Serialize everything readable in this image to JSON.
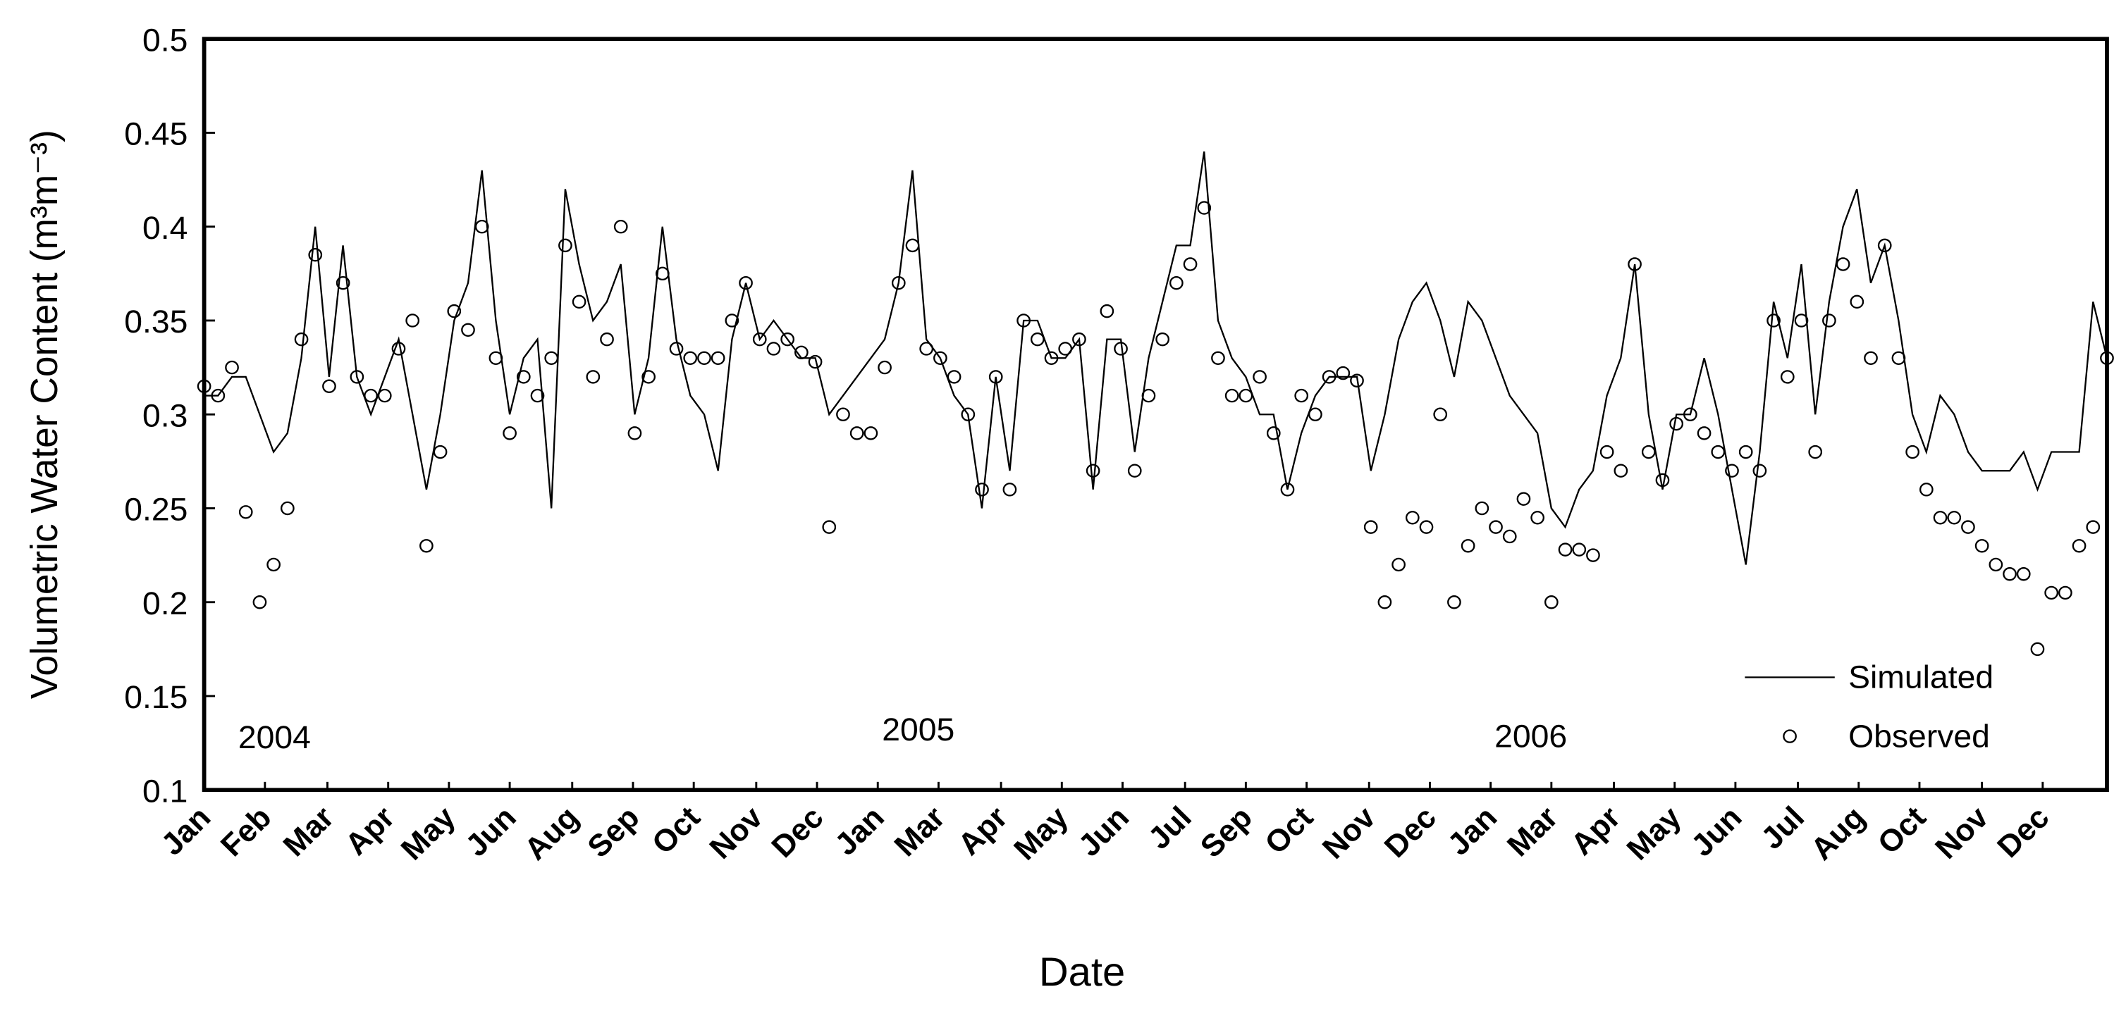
{
  "chart_data": {
    "type": "line",
    "x_label": "Date",
    "y_label": "Volumetric Water Content (m³m⁻³)",
    "annotations": [
      "2004",
      "2005",
      "2006"
    ],
    "xlim": [
      0,
      1096
    ],
    "xticks": [
      {
        "value": 0,
        "label": "Jan"
      },
      {
        "value": 35,
        "label": "Feb"
      },
      {
        "value": 71,
        "label": "Mar"
      },
      {
        "value": 106,
        "label": "Apr"
      },
      {
        "value": 141,
        "label": "May"
      },
      {
        "value": 176,
        "label": "Jun"
      },
      {
        "value": 212,
        "label": "Aug"
      },
      {
        "value": 247,
        "label": "Sep"
      },
      {
        "value": 282,
        "label": "Oct"
      },
      {
        "value": 318,
        "label": "Nov"
      },
      {
        "value": 353,
        "label": "Dec"
      },
      {
        "value": 388,
        "label": "Jan"
      },
      {
        "value": 423,
        "label": "Mar"
      },
      {
        "value": 459,
        "label": "Apr"
      },
      {
        "value": 494,
        "label": "May"
      },
      {
        "value": 529,
        "label": "Jun"
      },
      {
        "value": 565,
        "label": "Jul"
      },
      {
        "value": 600,
        "label": "Sep"
      },
      {
        "value": 635,
        "label": "Oct"
      },
      {
        "value": 671,
        "label": "Nov"
      },
      {
        "value": 706,
        "label": "Dec"
      },
      {
        "value": 741,
        "label": "Jan"
      },
      {
        "value": 776,
        "label": "Mar"
      },
      {
        "value": 812,
        "label": "Apr"
      },
      {
        "value": 847,
        "label": "May"
      },
      {
        "value": 882,
        "label": "Jun"
      },
      {
        "value": 918,
        "label": "Jul"
      },
      {
        "value": 953,
        "label": "Aug"
      },
      {
        "value": 988,
        "label": "Oct"
      },
      {
        "value": 1024,
        "label": "Nov"
      },
      {
        "value": 1059,
        "label": "Dec"
      }
    ],
    "ylim": [
      0.1,
      0.5
    ],
    "yticks": [
      0.1,
      0.15,
      0.2,
      0.25,
      0.3,
      0.35,
      0.4,
      0.45,
      0.5
    ],
    "grid": false,
    "legend": "lower right",
    "x": [
      0,
      8,
      16,
      24,
      32,
      40,
      48,
      56,
      64,
      72,
      80,
      88,
      96,
      104,
      112,
      120,
      128,
      136,
      144,
      152,
      160,
      168,
      176,
      184,
      192,
      200,
      208,
      216,
      224,
      232,
      240,
      248,
      256,
      264,
      272,
      280,
      288,
      296,
      304,
      312,
      320,
      328,
      336,
      344,
      352,
      360,
      368,
      376,
      384,
      392,
      400,
      408,
      416,
      424,
      432,
      440,
      448,
      456,
      464,
      472,
      480,
      488,
      496,
      504,
      512,
      520,
      528,
      536,
      544,
      552,
      560,
      568,
      576,
      584,
      592,
      600,
      608,
      616,
      624,
      632,
      640,
      648,
      656,
      664,
      672,
      680,
      688,
      696,
      704,
      712,
      720,
      728,
      736,
      744,
      752,
      760,
      768,
      776,
      784,
      792,
      800,
      808,
      816,
      824,
      832,
      840,
      848,
      856,
      864,
      872,
      880,
      888,
      896,
      904,
      912,
      920,
      928,
      936,
      944,
      952,
      960,
      968,
      976,
      984,
      992,
      1000,
      1008,
      1016,
      1024,
      1032,
      1040,
      1048,
      1056,
      1064,
      1072,
      1080,
      1088,
      1096
    ],
    "series": [
      {
        "name": "Simulated",
        "color": "#000000",
        "style": "line",
        "values": [
          0.31,
          0.31,
          0.32,
          0.32,
          0.3,
          0.28,
          0.29,
          0.33,
          0.4,
          0.32,
          0.39,
          0.32,
          0.3,
          0.32,
          0.34,
          0.3,
          0.26,
          0.3,
          0.35,
          0.37,
          0.43,
          0.35,
          0.3,
          0.33,
          0.34,
          0.25,
          0.42,
          0.38,
          0.35,
          0.36,
          0.38,
          0.3,
          0.33,
          0.4,
          0.34,
          0.31,
          0.3,
          0.27,
          0.34,
          0.37,
          0.34,
          0.35,
          0.34,
          0.33,
          0.33,
          0.3,
          0.31,
          0.32,
          0.33,
          0.34,
          0.37,
          0.43,
          0.34,
          0.33,
          0.31,
          0.3,
          0.25,
          0.32,
          0.27,
          0.35,
          0.35,
          0.33,
          0.33,
          0.34,
          0.26,
          0.34,
          0.34,
          0.28,
          0.33,
          0.36,
          0.39,
          0.39,
          0.44,
          0.35,
          0.33,
          0.32,
          0.3,
          0.3,
          0.26,
          0.29,
          0.31,
          0.32,
          0.32,
          0.32,
          0.27,
          0.3,
          0.34,
          0.36,
          0.37,
          0.35,
          0.32,
          0.36,
          0.35,
          0.33,
          0.31,
          0.3,
          0.29,
          0.25,
          0.24,
          0.26,
          0.27,
          0.31,
          0.33,
          0.38,
          0.3,
          0.26,
          0.3,
          0.3,
          0.33,
          0.3,
          0.26,
          0.22,
          0.28,
          0.36,
          0.33,
          0.38,
          0.3,
          0.36,
          0.4,
          0.42,
          0.37,
          0.39,
          0.35,
          0.3,
          0.28,
          0.31,
          0.3,
          0.28,
          0.27,
          0.27,
          0.27,
          0.28,
          0.26,
          0.28,
          0.28,
          0.28,
          0.36,
          0.33
        ]
      },
      {
        "name": "Observed",
        "color": "#000000",
        "style": "marker",
        "values": [
          0.315,
          0.31,
          0.325,
          0.248,
          0.2,
          0.22,
          0.25,
          0.34,
          0.385,
          0.315,
          0.37,
          0.32,
          0.31,
          0.31,
          0.335,
          0.35,
          0.23,
          0.28,
          0.355,
          0.345,
          0.4,
          0.33,
          0.29,
          0.32,
          0.31,
          0.33,
          0.39,
          0.36,
          0.32,
          0.34,
          0.4,
          0.29,
          0.32,
          0.375,
          0.335,
          0.33,
          0.33,
          0.33,
          0.35,
          0.37,
          0.34,
          0.335,
          0.34,
          0.333,
          0.328,
          0.24,
          0.3,
          0.29,
          0.29,
          0.325,
          0.37,
          0.39,
          0.335,
          0.33,
          0.32,
          0.3,
          0.26,
          0.32,
          0.26,
          0.35,
          0.34,
          0.33,
          0.335,
          0.34,
          0.27,
          0.355,
          0.335,
          0.27,
          0.31,
          0.34,
          0.37,
          0.38,
          0.41,
          0.33,
          0.31,
          0.31,
          0.32,
          0.29,
          0.26,
          0.31,
          0.3,
          0.32,
          0.322,
          0.318,
          0.24,
          0.2,
          0.22,
          0.245,
          0.24,
          0.3,
          0.2,
          0.23,
          0.25,
          0.24,
          0.235,
          0.255,
          0.245,
          0.2,
          0.228,
          0.228,
          0.225,
          0.28,
          0.27,
          0.38,
          0.28,
          0.265,
          0.295,
          0.3,
          0.29,
          0.28,
          0.27,
          0.28,
          0.27,
          0.35,
          0.32,
          0.35,
          0.28,
          0.35,
          0.38,
          0.36,
          0.33,
          0.39,
          0.33,
          0.28,
          0.26,
          0.245,
          0.245,
          0.24,
          0.23,
          0.22,
          0.215,
          0.215,
          0.175,
          0.205,
          0.205,
          0.23,
          0.24,
          0.33
        ]
      }
    ]
  }
}
